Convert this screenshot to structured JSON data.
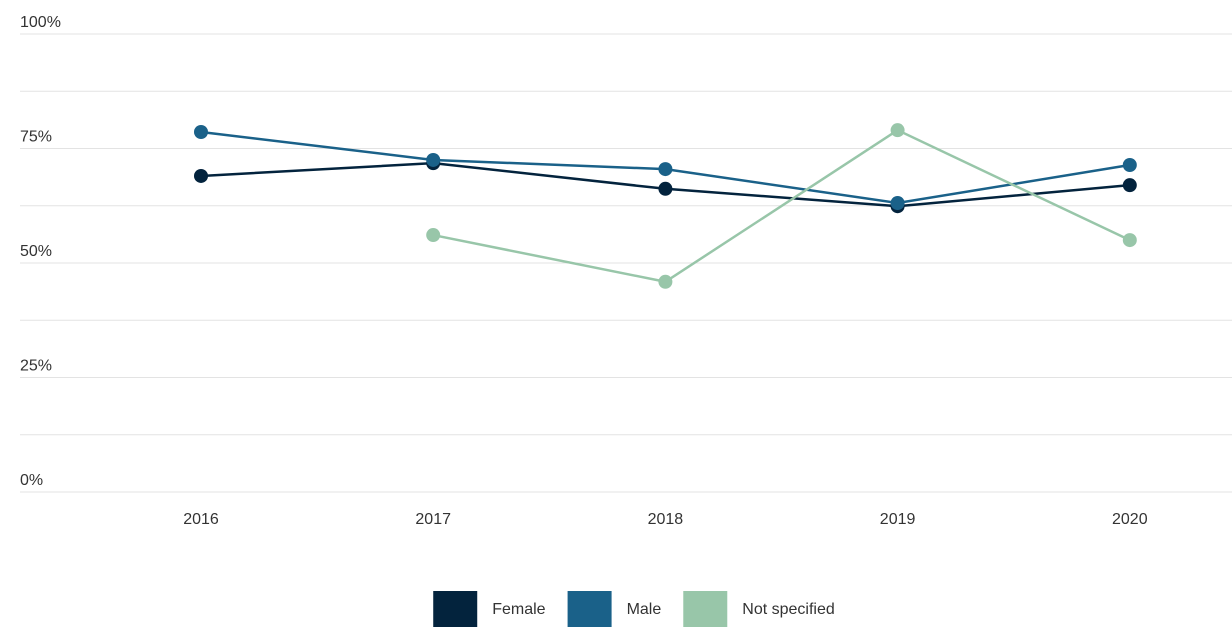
{
  "chart_data": {
    "type": "line",
    "categories": [
      "2016",
      "2017",
      "2018",
      "2019",
      "2020"
    ],
    "series": [
      {
        "name": "Female",
        "color": "#03233d",
        "values": [
          69.0,
          71.8,
          66.2,
          62.4,
          67.0
        ]
      },
      {
        "name": "Male",
        "color": "#1a6189",
        "values": [
          78.6,
          72.5,
          70.5,
          63.1,
          71.4
        ]
      },
      {
        "name": "Not specified",
        "color": "#98c6a9",
        "values": [
          null,
          56.1,
          45.9,
          79.0,
          55.0
        ]
      }
    ],
    "ylim": [
      0,
      100
    ],
    "yticks": [
      {
        "value": 0,
        "label": "0%"
      },
      {
        "value": 25,
        "label": "25%"
      },
      {
        "value": 50,
        "label": "50%"
      },
      {
        "value": 75,
        "label": "75%"
      },
      {
        "value": 100,
        "label": "100%"
      }
    ],
    "minor_yticks": [
      12.5,
      37.5,
      62.5,
      87.5
    ],
    "grid": true,
    "legend": "bottom"
  }
}
